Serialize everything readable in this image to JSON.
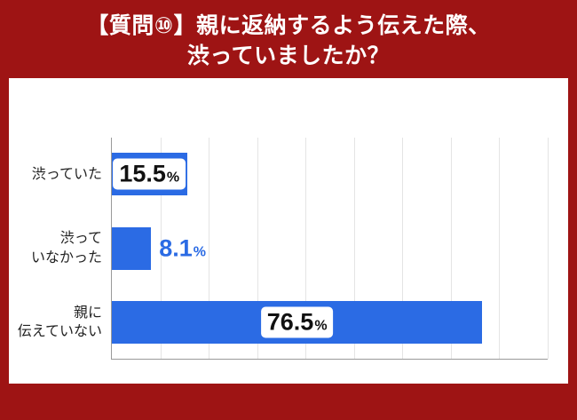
{
  "title": {
    "line1": "【質問⑩】親に返納するよう伝えた際、",
    "line2": "渋っていましたか？"
  },
  "chart_data": {
    "type": "bar",
    "orientation": "horizontal",
    "title": "【質問⑩】親に返納するよう伝えた際、渋っていましたか？",
    "categories": [
      "渋っていた",
      "渋って\nいなかった",
      "親に\n伝えていない"
    ],
    "values": [
      15.5,
      8.1,
      76.5
    ],
    "labels": [
      "15.5",
      "8.1",
      "76.5"
    ],
    "unit": "%",
    "xlabel": "",
    "ylabel": "",
    "xlim": [
      0,
      90
    ],
    "gridline_interval": 10,
    "grid": "vertical-lines-on",
    "legend": "none",
    "label_position": [
      "inside",
      "outside",
      "inside"
    ],
    "bar_color": "#2b6be4",
    "outside_label_color": "#2b6be4"
  },
  "colors": {
    "frame": "#9e1414",
    "panel": "#ffffff",
    "gridline": "#e4e4e4",
    "axis": "#9a9a9a",
    "value_label_text": "#111111",
    "title_text": "#ffffff"
  }
}
